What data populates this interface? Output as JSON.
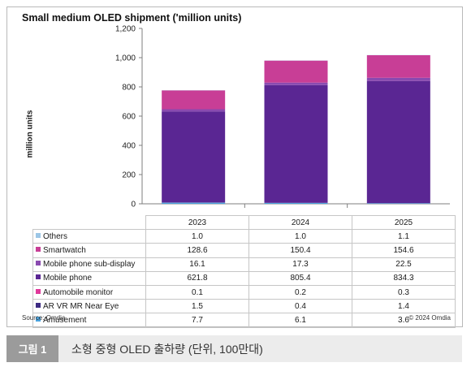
{
  "chart_data": {
    "type": "bar",
    "stacked": true,
    "title": "Small medium OLED shipment ('million units)",
    "ylabel": "million units",
    "xlabel": "",
    "ylim": [
      0,
      1200
    ],
    "yticks": [
      "0",
      "200",
      "400",
      "600",
      "800",
      "1,000",
      "1,200"
    ],
    "ytick_values": [
      0,
      200,
      400,
      600,
      800,
      1000,
      1200
    ],
    "grid": false,
    "legend": "table-below",
    "categories": [
      "2023",
      "2024",
      "2025"
    ],
    "series": [
      {
        "name": "Amusement",
        "values": [
          7.7,
          6.1,
          3.6
        ],
        "color": "#4aa3df"
      },
      {
        "name": "AR VR MR Near Eye",
        "values": [
          1.5,
          0.4,
          1.4
        ],
        "color": "#3d2a82"
      },
      {
        "name": "Automobile monitor",
        "values": [
          0.1,
          0.2,
          0.3
        ],
        "color": "#e0399b"
      },
      {
        "name": "Mobile phone",
        "values": [
          621.8,
          805.4,
          834.3
        ],
        "color": "#5a2693"
      },
      {
        "name": "Mobile phone sub-display",
        "values": [
          16.1,
          17.3,
          22.5
        ],
        "color": "#8a4ab0"
      },
      {
        "name": "Smartwatch",
        "values": [
          128.6,
          150.4,
          154.6
        ],
        "color": "#c83e96"
      },
      {
        "name": "Others",
        "values": [
          1.0,
          1.0,
          1.1
        ],
        "color": "#9cc6e6"
      }
    ],
    "table_rows": [
      {
        "name": "Others",
        "values": [
          "1.0",
          "1.0",
          "1.1"
        ],
        "color": "#9cc6e6"
      },
      {
        "name": "Smartwatch",
        "values": [
          "128.6",
          "150.4",
          "154.6"
        ],
        "color": "#c83e96"
      },
      {
        "name": "Mobile phone sub-display",
        "values": [
          "16.1",
          "17.3",
          "22.5"
        ],
        "color": "#8a4ab0"
      },
      {
        "name": "Mobile phone",
        "values": [
          "621.8",
          "805.4",
          "834.3"
        ],
        "color": "#5a2693"
      },
      {
        "name": "Automobile monitor",
        "values": [
          "0.1",
          "0.2",
          "0.3"
        ],
        "color": "#e0399b"
      },
      {
        "name": "AR VR MR Near Eye",
        "values": [
          "1.5",
          "0.4",
          "1.4"
        ],
        "color": "#3d2a82"
      },
      {
        "name": "Amusement",
        "values": [
          "7.7",
          "6.1",
          "3.6"
        ],
        "color": "#4aa3df"
      }
    ]
  },
  "source": "Source: Omdia",
  "copyright": "© 2024 Omdia",
  "caption": {
    "tag": "그림 1",
    "text": "소형 중형 OLED 출하량 (단위, 100만대)"
  }
}
